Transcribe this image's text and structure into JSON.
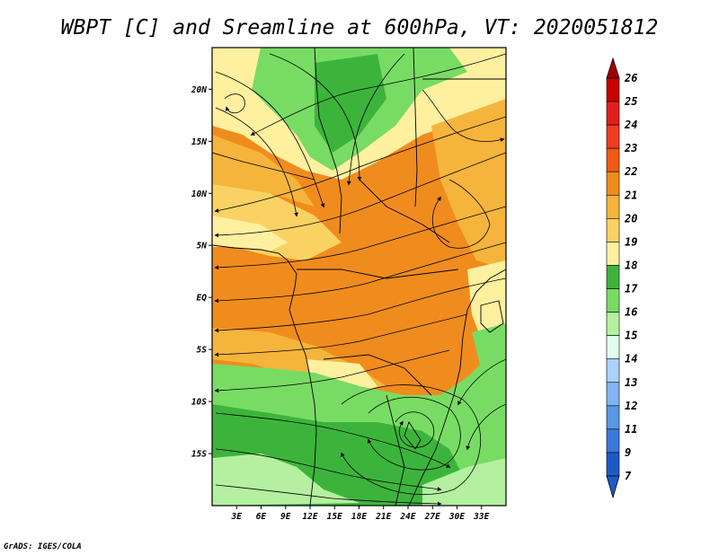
{
  "title": "WBPT [C] and Sreamline at 600hPa, VT: 2020051812",
  "credit": "GrADS: IGES/COLA",
  "map": {
    "lon_range": [
      0,
      36
    ],
    "lat_range": [
      -20,
      24
    ],
    "x_ticks": [
      {
        "label": "3E",
        "value": 3
      },
      {
        "label": "6E",
        "value": 6
      },
      {
        "label": "9E",
        "value": 9
      },
      {
        "label": "12E",
        "value": 12
      },
      {
        "label": "15E",
        "value": 15
      },
      {
        "label": "18E",
        "value": 18
      },
      {
        "label": "21E",
        "value": 21
      },
      {
        "label": "24E",
        "value": 24
      },
      {
        "label": "27E",
        "value": 27
      },
      {
        "label": "30E",
        "value": 30
      },
      {
        "label": "33E",
        "value": 33
      }
    ],
    "y_ticks": [
      {
        "label": "20N",
        "value": 20
      },
      {
        "label": "15N",
        "value": 15
      },
      {
        "label": "10N",
        "value": 10
      },
      {
        "label": "5N",
        "value": 5
      },
      {
        "label": "EQ",
        "value": 0
      },
      {
        "label": "5S",
        "value": -5
      },
      {
        "label": "10S",
        "value": -10
      },
      {
        "label": "15S",
        "value": -15
      }
    ]
  },
  "colorbar": {
    "levels": [
      {
        "label": "26",
        "color": "#a00000"
      },
      {
        "label": "25",
        "color": "#c80000"
      },
      {
        "label": "24",
        "color": "#e11e1e"
      },
      {
        "label": "23",
        "color": "#f03c1e"
      },
      {
        "label": "22",
        "color": "#f05a14"
      },
      {
        "label": "21",
        "color": "#f08c1e"
      },
      {
        "label": "20",
        "color": "#f5b43c"
      },
      {
        "label": "19",
        "color": "#fad264"
      },
      {
        "label": "18",
        "color": "#fff0a0"
      },
      {
        "label": "17",
        "color": "#3cb43c"
      },
      {
        "label": "16",
        "color": "#78dc64"
      },
      {
        "label": "15",
        "color": "#b4f0a0"
      },
      {
        "label": "14",
        "color": "#e1fff0"
      },
      {
        "label": "13",
        "color": "#aad2fa"
      },
      {
        "label": "12",
        "color": "#82b4f0"
      },
      {
        "label": "11",
        "color": "#5a96e6"
      },
      {
        "label": "9",
        "color": "#3c78dc"
      },
      {
        "label": "7",
        "color": "#1e5ac8"
      }
    ],
    "top_color": "#a00000",
    "bottom_color": "#1e5ac8"
  },
  "field_colors": {
    "orange": "#f08c1e",
    "light_orange": "#f5b43c",
    "pale_yellow": "#fff0a0",
    "yellow": "#fad264",
    "green": "#78dc64",
    "dark_green": "#3cb43c",
    "light_green": "#b4f0a0"
  }
}
